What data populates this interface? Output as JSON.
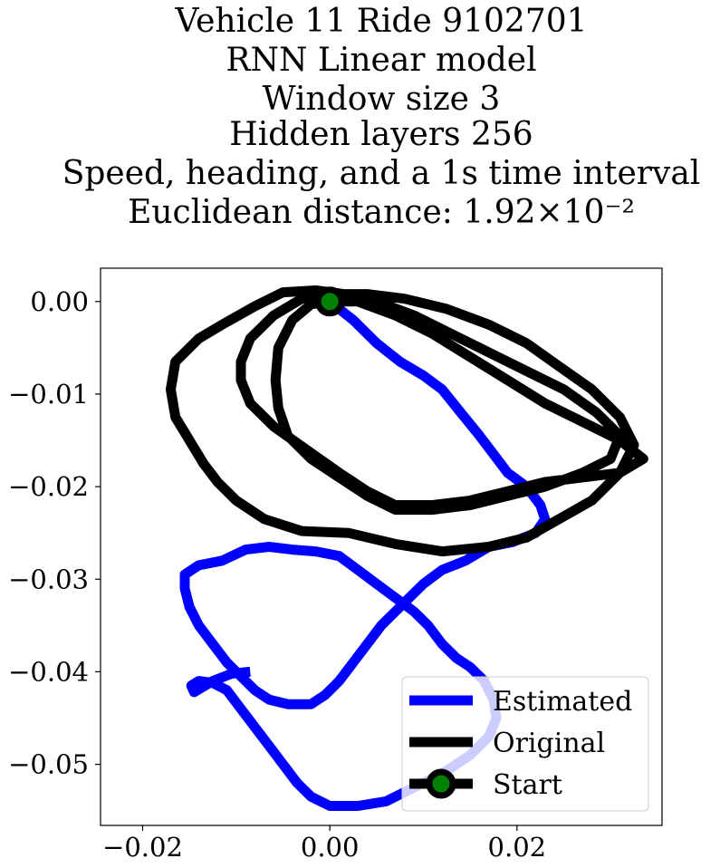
{
  "chart_data": {
    "type": "line",
    "title_lines": [
      "Vehicle 11 Ride 9102701",
      "RNN Linear model",
      "Window size 3",
      "Hidden layers 256",
      "Speed, heading, and a 1s time interval",
      "Euclidean distance: 1.92×10⁻²"
    ],
    "xlabel": "",
    "ylabel": "",
    "xlim": [
      -0.0245,
      0.0355
    ],
    "ylim": [
      -0.0566,
      0.0036
    ],
    "xticks": [
      -0.02,
      0.0,
      0.02
    ],
    "xtick_labels": [
      "−0.02",
      "0.00",
      "0.02"
    ],
    "yticks": [
      0.0,
      -0.01,
      -0.02,
      -0.03,
      -0.04,
      -0.05
    ],
    "ytick_labels": [
      "0.00",
      "−0.01",
      "−0.02",
      "−0.03",
      "−0.04",
      "−0.05"
    ],
    "grid": false,
    "legend_position": "lower-right",
    "series": [
      {
        "name": "Estimated",
        "color": "#0000ff",
        "points": [
          [
            0.0,
            0.0
          ],
          [
            0.0025,
            -0.002
          ],
          [
            0.005,
            -0.0045
          ],
          [
            0.0075,
            -0.0065
          ],
          [
            0.01,
            -0.008
          ],
          [
            0.012,
            -0.0095
          ],
          [
            0.014,
            -0.012
          ],
          [
            0.016,
            -0.0145
          ],
          [
            0.0175,
            -0.0165
          ],
          [
            0.019,
            -0.0185
          ],
          [
            0.021,
            -0.02
          ],
          [
            0.0225,
            -0.022
          ],
          [
            0.023,
            -0.0235
          ],
          [
            0.022,
            -0.025
          ],
          [
            0.0195,
            -0.026
          ],
          [
            0.017,
            -0.0265
          ],
          [
            0.0145,
            -0.028
          ],
          [
            0.012,
            -0.029
          ],
          [
            0.01,
            -0.0305
          ],
          [
            0.0085,
            -0.032
          ],
          [
            0.007,
            -0.0335
          ],
          [
            0.0055,
            -0.035
          ],
          [
            0.004,
            -0.037
          ],
          [
            0.0025,
            -0.039
          ],
          [
            0.001,
            -0.041
          ],
          [
            -0.0005,
            -0.0425
          ],
          [
            -0.002,
            -0.0435
          ],
          [
            -0.0045,
            -0.0435
          ],
          [
            -0.0065,
            -0.043
          ],
          [
            -0.008,
            -0.042
          ],
          [
            -0.0095,
            -0.0405
          ],
          [
            -0.011,
            -0.039
          ],
          [
            -0.0125,
            -0.037
          ],
          [
            -0.014,
            -0.035
          ],
          [
            -0.015,
            -0.033
          ],
          [
            -0.0155,
            -0.031
          ],
          [
            -0.0155,
            -0.0295
          ],
          [
            -0.014,
            -0.0285
          ],
          [
            -0.0115,
            -0.028
          ],
          [
            -0.009,
            -0.0268
          ],
          [
            -0.0065,
            -0.0265
          ],
          [
            -0.004,
            -0.0268
          ],
          [
            -0.0015,
            -0.027
          ],
          [
            0.001,
            -0.0275
          ],
          [
            0.003,
            -0.029
          ],
          [
            0.005,
            -0.0305
          ],
          [
            0.007,
            -0.032
          ],
          [
            0.009,
            -0.0335
          ],
          [
            0.0105,
            -0.035
          ],
          [
            0.012,
            -0.037
          ],
          [
            0.0135,
            -0.0385
          ],
          [
            0.015,
            -0.0395
          ],
          [
            0.0165,
            -0.041
          ],
          [
            0.0175,
            -0.043
          ],
          [
            0.0178,
            -0.045
          ],
          [
            0.017,
            -0.047
          ],
          [
            0.015,
            -0.049
          ],
          [
            0.012,
            -0.051
          ],
          [
            0.009,
            -0.0525
          ],
          [
            0.006,
            -0.054
          ],
          [
            0.003,
            -0.0545
          ],
          [
            0.0,
            -0.0545
          ],
          [
            -0.002,
            -0.0535
          ],
          [
            -0.0035,
            -0.052
          ],
          [
            -0.005,
            -0.05
          ],
          [
            -0.0065,
            -0.048
          ],
          [
            -0.008,
            -0.046
          ],
          [
            -0.0095,
            -0.044
          ],
          [
            -0.011,
            -0.042
          ],
          [
            -0.0125,
            -0.0412
          ],
          [
            -0.014,
            -0.041
          ],
          [
            -0.0148,
            -0.0415
          ],
          [
            -0.0145,
            -0.0422
          ],
          [
            -0.0125,
            -0.041
          ],
          [
            -0.0105,
            -0.0402
          ],
          [
            -0.0085,
            -0.04
          ]
        ]
      },
      {
        "name": "Original",
        "color": "#000000",
        "points": [
          [
            0.0,
            0.0
          ],
          [
            0.003,
            0.0
          ],
          [
            0.007,
            -0.0015
          ],
          [
            0.011,
            -0.0035
          ],
          [
            0.015,
            -0.006
          ],
          [
            0.019,
            -0.0085
          ],
          [
            0.023,
            -0.011
          ],
          [
            0.027,
            -0.013
          ],
          [
            0.031,
            -0.015
          ],
          [
            0.0335,
            -0.017
          ],
          [
            0.031,
            -0.0185
          ],
          [
            0.027,
            -0.019
          ],
          [
            0.023,
            -0.0195
          ],
          [
            0.019,
            -0.0205
          ],
          [
            0.015,
            -0.0215
          ],
          [
            0.011,
            -0.022
          ],
          [
            0.007,
            -0.022
          ],
          [
            0.004,
            -0.0205
          ],
          [
            0.001,
            -0.0185
          ],
          [
            -0.0025,
            -0.016
          ],
          [
            -0.006,
            -0.0135
          ],
          [
            -0.0085,
            -0.011
          ],
          [
            -0.0095,
            -0.0085
          ],
          [
            -0.0095,
            -0.0065
          ],
          [
            -0.0085,
            -0.004
          ],
          [
            -0.006,
            -0.0015
          ],
          [
            -0.003,
            0.0003
          ],
          [
            0.0,
            0.0008
          ],
          [
            0.004,
            0.0008
          ],
          [
            0.008,
            0.0003
          ],
          [
            0.0125,
            -0.0008
          ],
          [
            0.017,
            -0.0025
          ],
          [
            0.021,
            -0.0045
          ],
          [
            0.0245,
            -0.007
          ],
          [
            0.028,
            -0.0095
          ],
          [
            0.031,
            -0.0125
          ],
          [
            0.0325,
            -0.0155
          ],
          [
            0.031,
            -0.0185
          ],
          [
            0.028,
            -0.0215
          ],
          [
            0.0245,
            -0.0235
          ],
          [
            0.021,
            -0.0255
          ],
          [
            0.017,
            -0.0265
          ],
          [
            0.012,
            -0.027
          ],
          [
            0.007,
            -0.0262
          ],
          [
            0.002,
            -0.025
          ],
          [
            -0.003,
            -0.0248
          ],
          [
            -0.007,
            -0.0235
          ],
          [
            -0.01,
            -0.0215
          ],
          [
            -0.012,
            -0.0195
          ],
          [
            -0.0135,
            -0.0175
          ],
          [
            -0.015,
            -0.015
          ],
          [
            -0.0165,
            -0.0125
          ],
          [
            -0.017,
            -0.0095
          ],
          [
            -0.0165,
            -0.0065
          ],
          [
            -0.014,
            -0.004
          ],
          [
            -0.0115,
            -0.0025
          ],
          [
            -0.008,
            -0.0005
          ],
          [
            -0.005,
            0.001
          ],
          [
            -0.0015,
            0.0012
          ],
          [
            0.0015,
            0.0008
          ],
          [
            0.005,
            0.0
          ],
          [
            0.009,
            -0.0015
          ],
          [
            0.013,
            -0.0035
          ],
          [
            0.017,
            -0.0055
          ],
          [
            0.021,
            -0.0075
          ],
          [
            0.025,
            -0.0095
          ],
          [
            0.0285,
            -0.012
          ],
          [
            0.031,
            -0.0145
          ],
          [
            0.03,
            -0.017
          ],
          [
            0.027,
            -0.0185
          ],
          [
            0.023,
            -0.02
          ],
          [
            0.019,
            -0.021
          ],
          [
            0.015,
            -0.022
          ],
          [
            0.011,
            -0.0225
          ],
          [
            0.007,
            -0.0225
          ],
          [
            0.004,
            -0.021
          ],
          [
            0.001,
            -0.019
          ],
          [
            -0.002,
            -0.017
          ],
          [
            -0.0045,
            -0.0145
          ],
          [
            -0.0055,
            -0.0115
          ],
          [
            -0.0058,
            -0.0085
          ],
          [
            -0.0055,
            -0.005
          ],
          [
            -0.004,
            -0.002
          ],
          [
            -0.002,
            -0.0003
          ],
          [
            0.0,
            0.0
          ]
        ]
      }
    ],
    "markers": [
      {
        "name": "Start",
        "x": 0.0,
        "y": 0.0,
        "face_color": "#008000",
        "edge_color": "#000000"
      }
    ],
    "legend": [
      {
        "label": "Estimated",
        "color": "#0000ff",
        "kind": "line"
      },
      {
        "label": "Original",
        "color": "#000000",
        "kind": "line"
      },
      {
        "label": "Start",
        "color": "#000000",
        "kind": "line-marker",
        "marker_color": "#008000"
      }
    ]
  }
}
